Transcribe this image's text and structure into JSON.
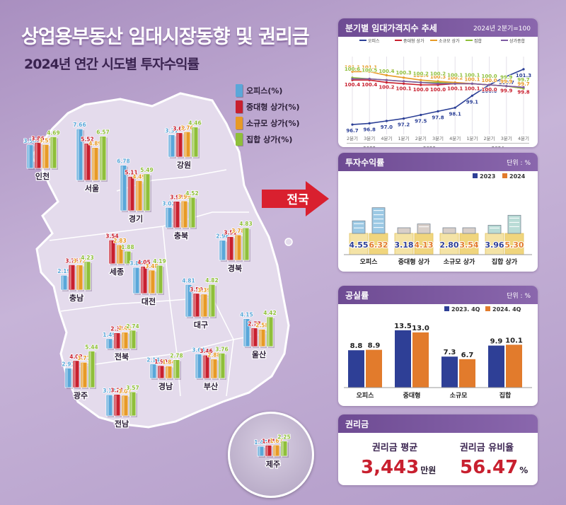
{
  "title": "상업용부동산 임대시장동향 및 권리금",
  "subtitle": "2024년 연간 시도별 투자수익률",
  "arrow_label": "전국",
  "colors": {
    "office": "#5aa7d9",
    "medium": "#c8202f",
    "small": "#e79a26",
    "complex": "#8fbf3a"
  },
  "chart_data": [
    {
      "type": "bar",
      "id": "regional_returns",
      "series_names": [
        "오피스(%)",
        "중대형 상가(%)",
        "소규모 상가(%)",
        "집합 상가(%)"
      ],
      "regions": [
        {
          "name": "인천",
          "values": [
            3.5,
            3.86,
            3.55,
            4.69
          ]
        },
        {
          "name": "서울",
          "values": [
            7.66,
            5.52,
            4.89,
            6.57
          ]
        },
        {
          "name": "경기",
          "values": [
            6.78,
            5.11,
            4.49,
            5.49
          ]
        },
        {
          "name": "강원",
          "values": [
            3.31,
            3.61,
            3.76,
            4.46
          ]
        },
        {
          "name": "충북",
          "values": [
            3.02,
            3.94,
            3.99,
            4.52
          ]
        },
        {
          "name": "세종",
          "values": [
            null,
            3.54,
            2.83,
            1.88
          ]
        },
        {
          "name": "충남",
          "values": [
            2.19,
            3.75,
            3.72,
            4.23
          ]
        },
        {
          "name": "대전",
          "values": [
            3.88,
            4.05,
            3.48,
            4.19
          ]
        },
        {
          "name": "경북",
          "values": [
            2.98,
            3.51,
            3.78,
            4.83
          ]
        },
        {
          "name": "대구",
          "values": [
            4.81,
            3.5,
            3.39,
            4.82
          ]
        },
        {
          "name": "전북",
          "values": [
            1.49,
            2.36,
            2.46,
            2.74
          ]
        },
        {
          "name": "울산",
          "values": [
            4.15,
            2.77,
            2.58,
            4.42
          ]
        },
        {
          "name": "광주",
          "values": [
            2.91,
            4.02,
            3.77,
            5.44
          ]
        },
        {
          "name": "경남",
          "values": [
            2.14,
            1.9,
            1.84,
            2.78
          ]
        },
        {
          "name": "부산",
          "values": [
            3.64,
            3.46,
            2.88,
            3.76
          ]
        },
        {
          "name": "전남",
          "values": [
            3.14,
            3.21,
            3.07,
            3.57
          ]
        },
        {
          "name": "제주",
          "values": [
            1.47,
            1.64,
            1.67,
            2.25
          ]
        }
      ]
    },
    {
      "type": "line",
      "id": "rent_index",
      "title": "분기별 임대가격지수 추세",
      "note": "2024년 2분기=100",
      "x": [
        "2분기",
        "3분기",
        "4분기",
        "1분기",
        "2분기",
        "3분기",
        "4분기",
        "1분기",
        "2분기",
        "3분기",
        "4분기"
      ],
      "year_labels": [
        "2022",
        "2023",
        "2024"
      ],
      "series": [
        {
          "name": "오피스",
          "color": "#2b3f96",
          "values": [
            96.7,
            96.8,
            97.0,
            97.2,
            97.5,
            97.8,
            98.1,
            99.1,
            100.0,
            100.7,
            101.3
          ]
        },
        {
          "name": "중대형 상가",
          "color": "#c8202f",
          "values": [
            100.4,
            100.4,
            100.2,
            100.1,
            100.0,
            100.0,
            100.1,
            100.1,
            100.0,
            99.9,
            99.8
          ]
        },
        {
          "name": "소규모 상가",
          "color": "#e79a26",
          "values": [
            101.1,
            101.1,
            100.8,
            100.6,
            100.4,
            100.3,
            100.2,
            100.1,
            100.0,
            99.9,
            99.7
          ]
        },
        {
          "name": "집합",
          "color": "#8fbf3a",
          "values": [
            100.6,
            100.5,
            100.4,
            100.3,
            100.2,
            100.2,
            100.1,
            100.1,
            100.0,
            99.9,
            99.7
          ]
        },
        {
          "name": "상가종합",
          "color": "#7d5aa2",
          "values": [
            100.5,
            100.5,
            100.4,
            100.3,
            100.2,
            100.1,
            100.1,
            100.1,
            100.0,
            99.9,
            99.8
          ]
        }
      ]
    },
    {
      "type": "bar",
      "id": "national_returns",
      "title": "투자수익률",
      "unit": "단위 : %",
      "categories": [
        "오피스",
        "중대형 상가",
        "소규모 상가",
        "집합 상가"
      ],
      "series": [
        {
          "name": "2023",
          "color": "#2e3f96",
          "values": [
            4.55,
            3.18,
            2.8,
            3.96
          ]
        },
        {
          "name": "2024",
          "color": "#e27b2c",
          "values": [
            6.32,
            4.13,
            3.54,
            5.3
          ]
        }
      ]
    },
    {
      "type": "bar",
      "id": "vacancy",
      "title": "공실률",
      "unit": "단위 : %",
      "categories": [
        "오피스",
        "중대형",
        "소규모",
        "집합"
      ],
      "series": [
        {
          "name": "2023. 4Q",
          "color": "#2e3f96",
          "values": [
            8.8,
            13.5,
            7.3,
            9.9
          ]
        },
        {
          "name": "2024. 4Q",
          "color": "#e27b2c",
          "values": [
            8.9,
            13.0,
            6.7,
            10.1
          ]
        }
      ],
      "ylim": [
        0,
        15
      ]
    }
  ],
  "key_money": {
    "title": "권리금",
    "avg_label": "권리금 평균",
    "avg_value": "3,443",
    "avg_unit": "만원",
    "rate_label": "권리금 유비율",
    "rate_value": "56.47",
    "rate_unit": "%"
  }
}
